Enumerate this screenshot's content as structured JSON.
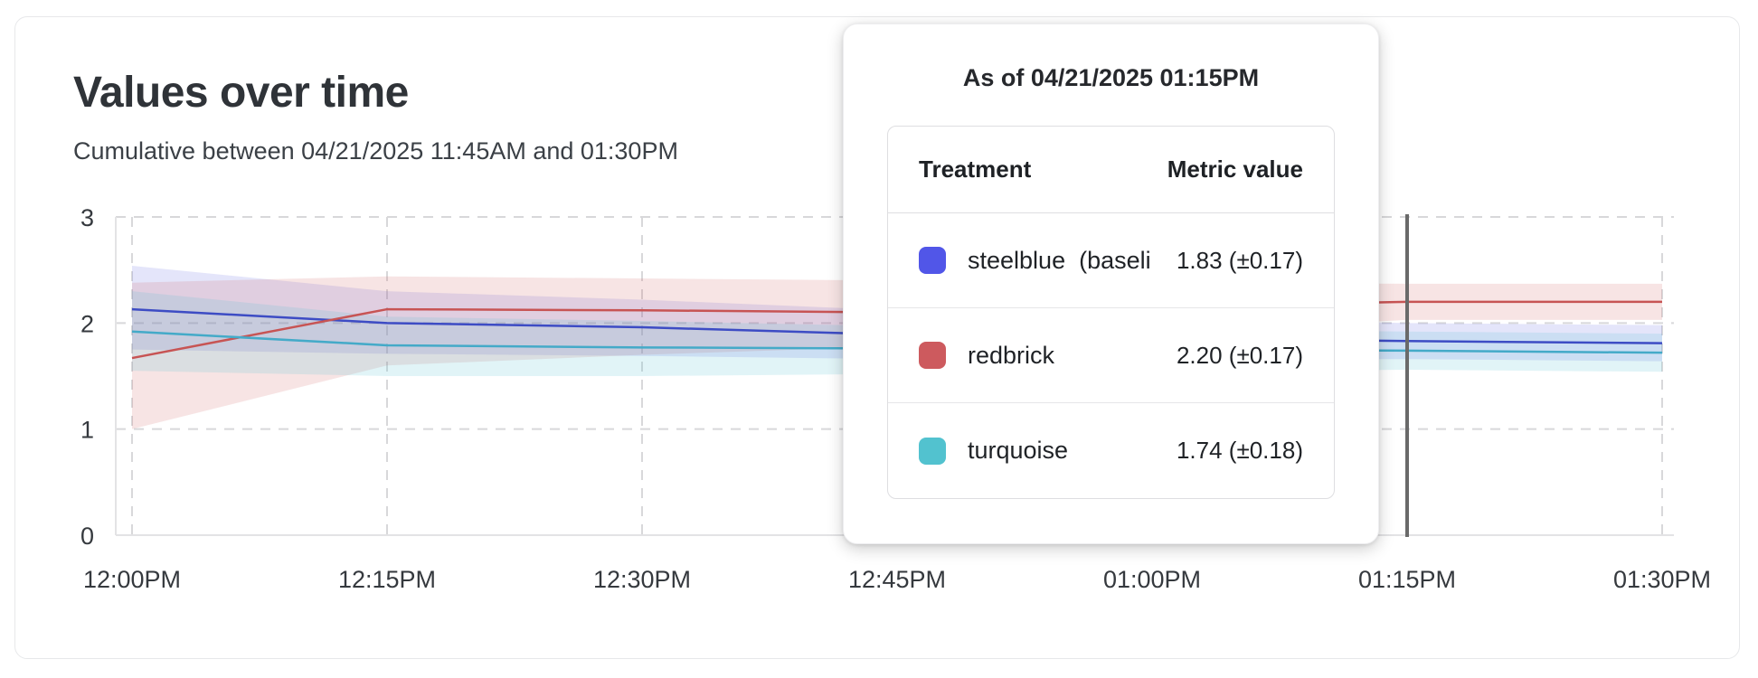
{
  "card": {
    "title": "Values over time",
    "subtitle": "Cumulative between 04/21/2025 11:45AM and 01:30PM"
  },
  "tooltip": {
    "title": "As of 04/21/2025 01:15PM",
    "columns": {
      "treatment": "Treatment",
      "metric_value": "Metric value"
    },
    "rows": [
      {
        "label": "steelblue  (baseli",
        "value": "1.83 (±0.17)",
        "color": "#5156e8"
      },
      {
        "label": "redbrick",
        "value": "2.20 (±0.17)",
        "color": "#cd5a5e"
      },
      {
        "label": "turquoise",
        "value": "1.74 (±0.18)",
        "color": "#52c2cf"
      }
    ]
  },
  "chart_data": {
    "type": "line",
    "title": "Values over time",
    "xlabel": "",
    "ylabel": "",
    "ylim": [
      0,
      3
    ],
    "y_ticks": [
      0,
      1,
      2,
      3
    ],
    "grid": "dashed",
    "legend_position": "tooltip",
    "x_labels": [
      "12:00PM",
      "12:15PM",
      "12:30PM",
      "12:45PM",
      "01:00PM",
      "01:15PM",
      "01:30PM"
    ],
    "cursor": {
      "x_label": "01:15PM",
      "color": "#6a6a6a"
    },
    "series": [
      {
        "name": "steelblue (baseline)",
        "line_color": "#3d4cc4",
        "band_color": "#5a5fe0",
        "band_opacity": 0.16,
        "values": [
          2.13,
          2.0,
          1.96,
          1.89,
          1.86,
          1.83,
          1.81
        ],
        "band_upper": [
          2.54,
          2.3,
          2.22,
          2.12,
          2.05,
          2.0,
          1.98
        ],
        "band_lower": [
          1.75,
          1.71,
          1.69,
          1.66,
          1.66,
          1.66,
          1.64
        ]
      },
      {
        "name": "redbrick",
        "line_color": "#c75454",
        "band_color": "#cd5c5c",
        "band_opacity": 0.17,
        "values": [
          1.67,
          2.13,
          2.12,
          2.1,
          2.15,
          2.2,
          2.2
        ],
        "band_upper": [
          2.38,
          2.44,
          2.42,
          2.4,
          2.38,
          2.37,
          2.37
        ],
        "band_lower": [
          1.0,
          1.6,
          1.7,
          1.78,
          1.9,
          2.03,
          2.03
        ]
      },
      {
        "name": "turquoise",
        "line_color": "#44aac8",
        "band_color": "#56c3d0",
        "band_opacity": 0.18,
        "values": [
          1.92,
          1.79,
          1.77,
          1.76,
          1.75,
          1.74,
          1.72
        ],
        "band_upper": [
          2.3,
          2.06,
          2.02,
          1.97,
          1.94,
          1.92,
          1.9
        ],
        "band_lower": [
          1.55,
          1.5,
          1.5,
          1.52,
          1.54,
          1.56,
          1.54
        ]
      }
    ]
  }
}
